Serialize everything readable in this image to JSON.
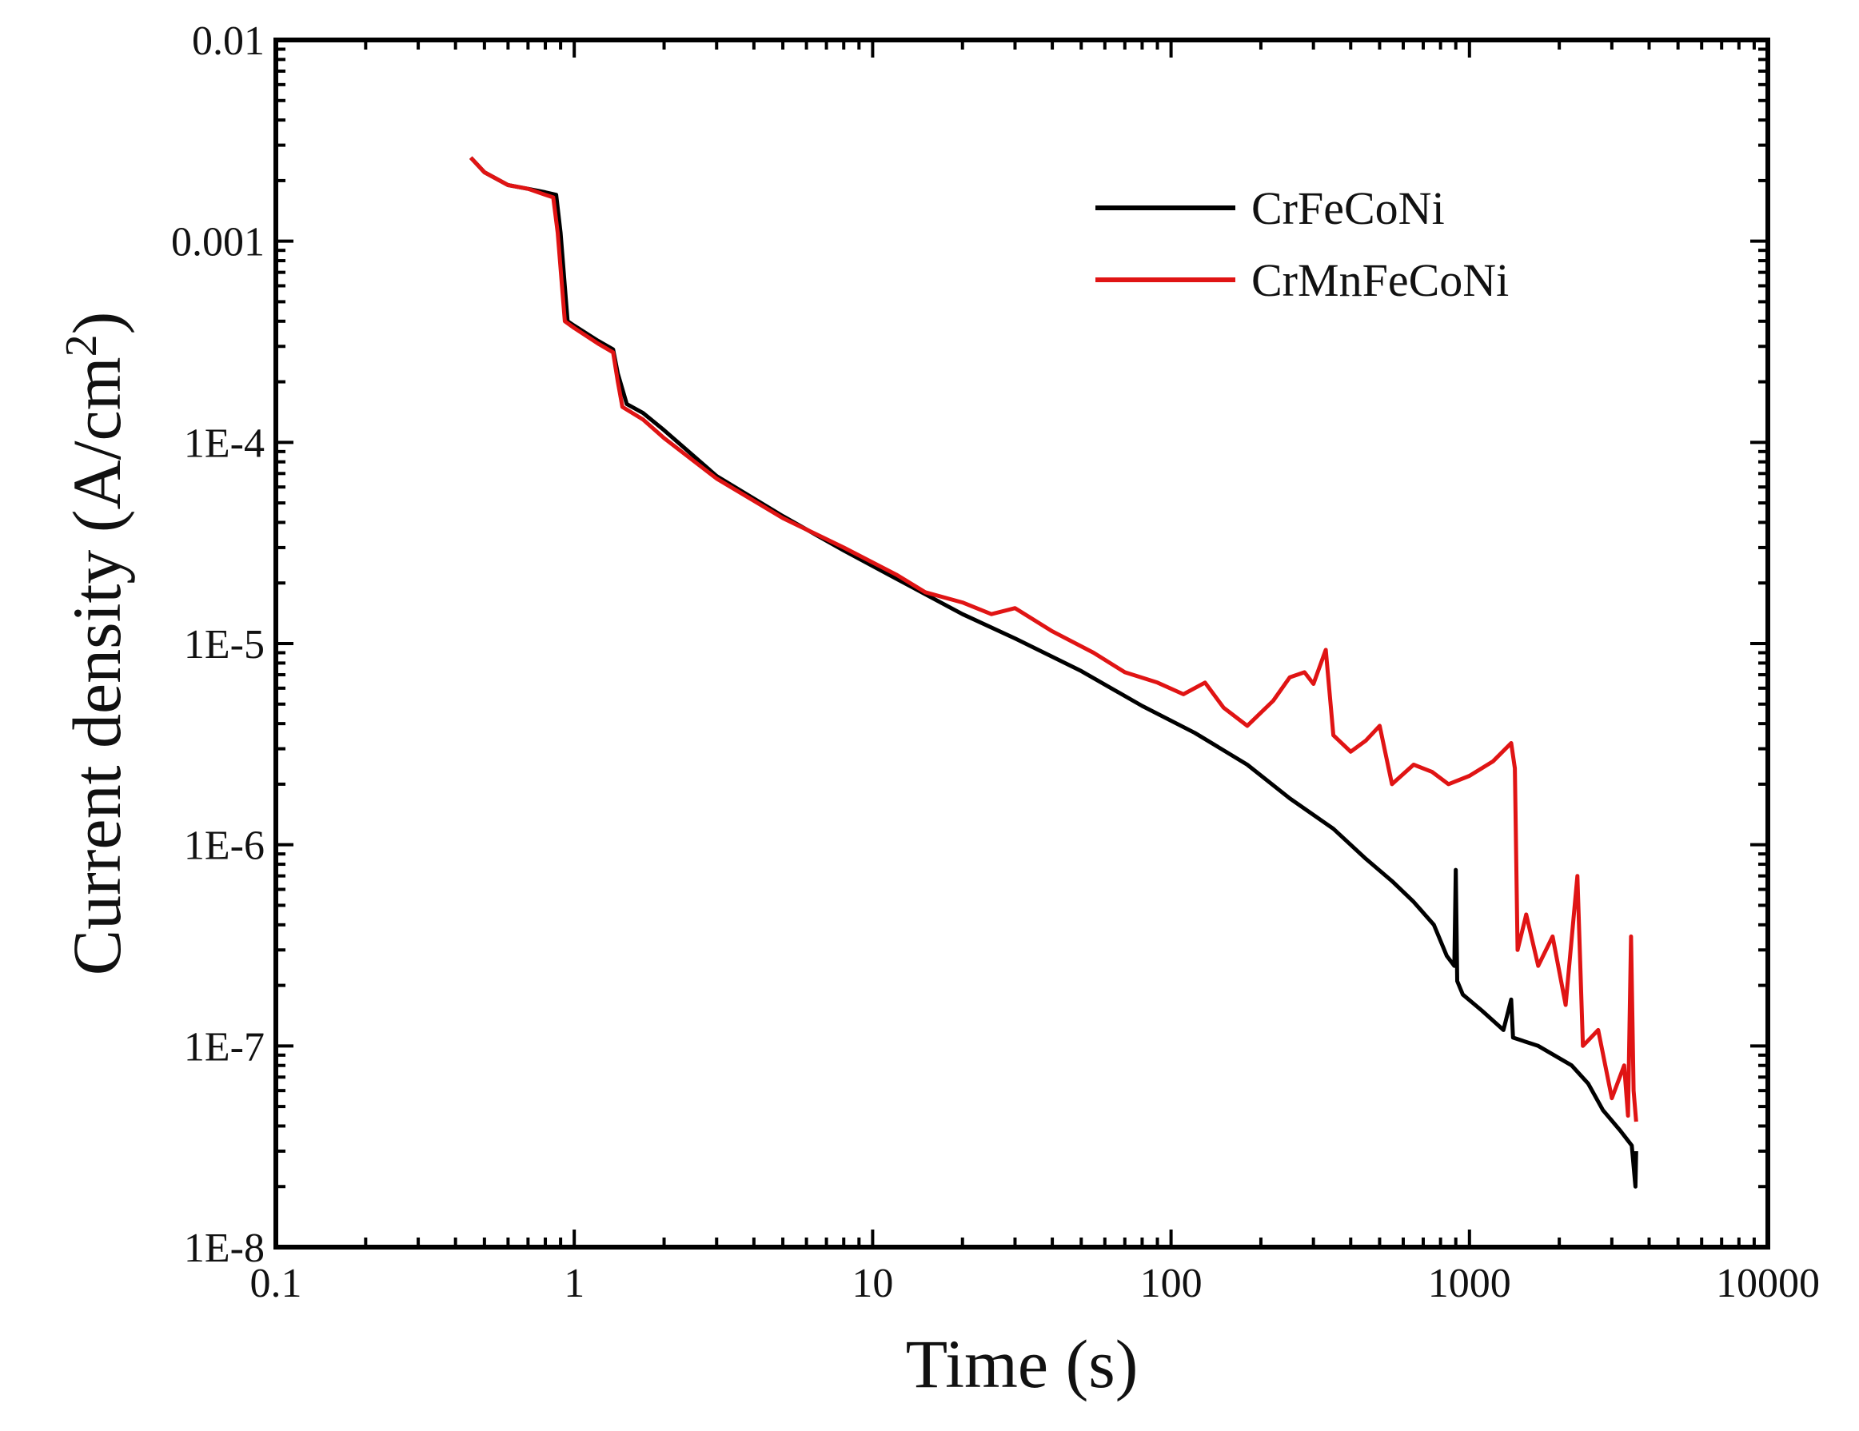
{
  "chart_data": {
    "type": "line",
    "title": "",
    "xlabel": "Time (s)",
    "ylabel_main": "Current density (A/cm",
    "ylabel_sup": "2",
    "ylabel_close": ")",
    "xscale": "log",
    "yscale": "log",
    "xlim": [
      0.1,
      10000
    ],
    "ylim": [
      1e-08,
      0.01
    ],
    "x_ticks": [
      {
        "value": 0.1,
        "label": "0.1"
      },
      {
        "value": 1,
        "label": "1"
      },
      {
        "value": 10,
        "label": "10"
      },
      {
        "value": 100,
        "label": "100"
      },
      {
        "value": 1000,
        "label": "1000"
      },
      {
        "value": 10000,
        "label": "10000"
      }
    ],
    "y_ticks": [
      {
        "value": 0.01,
        "label": "0.01"
      },
      {
        "value": 0.001,
        "label": "0.001"
      },
      {
        "value": 0.0001,
        "label": "1E-4"
      },
      {
        "value": 1e-05,
        "label": "1E-5"
      },
      {
        "value": 1e-06,
        "label": "1E-6"
      },
      {
        "value": 1e-07,
        "label": "1E-7"
      },
      {
        "value": 1e-08,
        "label": "1E-8"
      }
    ],
    "grid": false,
    "legend_position": "top-right",
    "series": [
      {
        "name": "CrFeCoNi",
        "color": "#000000",
        "points": [
          [
            0.45,
            0.0026
          ],
          [
            0.5,
            0.0022
          ],
          [
            0.6,
            0.0019
          ],
          [
            0.7,
            0.00182
          ],
          [
            0.8,
            0.00175
          ],
          [
            0.87,
            0.0017
          ],
          [
            0.9,
            0.0011
          ],
          [
            0.95,
            0.0004
          ],
          [
            1.0,
            0.00038
          ],
          [
            1.2,
            0.00032
          ],
          [
            1.35,
            0.00029
          ],
          [
            1.4,
            0.00022
          ],
          [
            1.5,
            0.000155
          ],
          [
            1.7,
            0.00014
          ],
          [
            2.0,
            0.000115
          ],
          [
            3.0,
            6.8e-05
          ],
          [
            5.0,
            4.3e-05
          ],
          [
            8.0,
            2.9e-05
          ],
          [
            12.0,
            2.1e-05
          ],
          [
            20.0,
            1.4e-05
          ],
          [
            30.0,
            1.06e-05
          ],
          [
            50.0,
            7.3e-06
          ],
          [
            80.0,
            4.9e-06
          ],
          [
            120.0,
            3.6e-06
          ],
          [
            180.0,
            2.5e-06
          ],
          [
            250.0,
            1.7e-06
          ],
          [
            350.0,
            1.2e-06
          ],
          [
            450.0,
            8.5e-07
          ],
          [
            550.0,
            6.6e-07
          ],
          [
            650.0,
            5.2e-07
          ],
          [
            760.0,
            4e-07
          ],
          [
            840.0,
            2.8e-07
          ],
          [
            890.0,
            2.5e-07
          ],
          [
            900.0,
            7.5e-07
          ],
          [
            910.0,
            2.1e-07
          ],
          [
            950.0,
            1.8e-07
          ],
          [
            1100.0,
            1.5e-07
          ],
          [
            1300.0,
            1.2e-07
          ],
          [
            1380.0,
            1.7e-07
          ],
          [
            1400.0,
            1.1e-07
          ],
          [
            1700.0,
            1e-07
          ],
          [
            2200.0,
            8e-08
          ],
          [
            2500.0,
            6.5e-08
          ],
          [
            2800.0,
            4.8e-08
          ],
          [
            3200.0,
            3.8e-08
          ],
          [
            3500.0,
            3.2e-08
          ],
          [
            3600.0,
            2e-08
          ],
          [
            3620.0,
            3e-08
          ]
        ]
      },
      {
        "name": "CrMnFeCoNi",
        "color": "#e01414",
        "points": [
          [
            0.45,
            0.0026
          ],
          [
            0.5,
            0.0022
          ],
          [
            0.6,
            0.0019
          ],
          [
            0.7,
            0.00182
          ],
          [
            0.8,
            0.0017
          ],
          [
            0.85,
            0.00165
          ],
          [
            0.88,
            0.0011
          ],
          [
            0.93,
            0.0004
          ],
          [
            1.0,
            0.00037
          ],
          [
            1.2,
            0.00031
          ],
          [
            1.35,
            0.00028
          ],
          [
            1.4,
            0.0002
          ],
          [
            1.45,
            0.00015
          ],
          [
            1.7,
            0.00013
          ],
          [
            2.0,
            0.000105
          ],
          [
            3.0,
            6.6e-05
          ],
          [
            5.0,
            4.2e-05
          ],
          [
            8.0,
            3e-05
          ],
          [
            12.0,
            2.2e-05
          ],
          [
            15.0,
            1.8e-05
          ],
          [
            20.0,
            1.6e-05
          ],
          [
            25.0,
            1.4e-05
          ],
          [
            30.0,
            1.5e-05
          ],
          [
            40.0,
            1.15e-05
          ],
          [
            55.0,
            9e-06
          ],
          [
            70.0,
            7.2e-06
          ],
          [
            90.0,
            6.4e-06
          ],
          [
            110.0,
            5.6e-06
          ],
          [
            130.0,
            6.4e-06
          ],
          [
            150.0,
            4.8e-06
          ],
          [
            180.0,
            3.9e-06
          ],
          [
            220.0,
            5.2e-06
          ],
          [
            250.0,
            6.8e-06
          ],
          [
            280.0,
            7.2e-06
          ],
          [
            300.0,
            6.3e-06
          ],
          [
            330.0,
            9.3e-06
          ],
          [
            350.0,
            3.5e-06
          ],
          [
            400.0,
            2.9e-06
          ],
          [
            450.0,
            3.3e-06
          ],
          [
            500.0,
            3.9e-06
          ],
          [
            550.0,
            2e-06
          ],
          [
            650.0,
            2.5e-06
          ],
          [
            750.0,
            2.3e-06
          ],
          [
            850.0,
            2e-06
          ],
          [
            1000.0,
            2.2e-06
          ],
          [
            1200.0,
            2.6e-06
          ],
          [
            1380.0,
            3.2e-06
          ],
          [
            1420.0,
            2.4e-06
          ],
          [
            1450.0,
            3e-07
          ],
          [
            1550.0,
            4.5e-07
          ],
          [
            1700.0,
            2.5e-07
          ],
          [
            1900.0,
            3.5e-07
          ],
          [
            2100.0,
            1.6e-07
          ],
          [
            2300.0,
            7e-07
          ],
          [
            2400.0,
            1e-07
          ],
          [
            2700.0,
            1.2e-07
          ],
          [
            3000.0,
            5.5e-08
          ],
          [
            3300.0,
            8e-08
          ],
          [
            3400.0,
            4.5e-08
          ],
          [
            3480.0,
            3.5e-07
          ],
          [
            3550.0,
            6e-08
          ],
          [
            3620.0,
            4.2e-08
          ]
        ]
      }
    ]
  }
}
